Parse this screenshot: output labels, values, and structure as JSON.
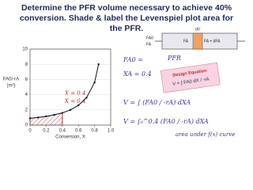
{
  "header": {
    "title": [
      "Determine the PFR volume necessary to achieve 40%",
      "conversion. Shade & label the Levenspiel plot area for",
      "the PFR."
    ]
  },
  "plot": {
    "ylabel": "FA0/-rA",
    "yunit": "(m³)",
    "xlabel": "Conversion, X",
    "xlim": [
      0,
      1
    ],
    "ylim": [
      0,
      10
    ],
    "xticks": [
      0,
      0.2,
      0.4,
      0.6,
      0.8,
      {
        "value": 1,
        "label": "1.0"
      }
    ],
    "yticks": [
      0,
      2,
      4,
      6,
      8,
      10
    ],
    "curve": {
      "x": [
        0,
        0.1,
        0.2,
        0.3,
        0.4,
        0.5,
        0.6,
        0.7,
        0.8,
        0.85
      ],
      "y": [
        0.9,
        1.0,
        1.15,
        1.35,
        1.6,
        2.0,
        2.6,
        3.6,
        5.6,
        8.0
      ]
    },
    "notes": [
      "X = 0.4",
      "X = 0.4"
    ]
  },
  "reactor": {
    "labels": [
      "dV",
      "FA0",
      "FA",
      "FA",
      "FA + dFA"
    ]
  },
  "handwriting": {
    "lines": [
      "FA0 =",
      "XA = 0.4",
      "PFR"
    ],
    "box": [
      "Design Equation",
      "V = ∫ FA0 dX / -rA"
    ],
    "equations": [
      "V = ∫ (FA0 / -rA) dXA",
      "V = ∫₀^0.4 (FA0 / -rA) dXA",
      "area under f(x) curve"
    ]
  }
}
